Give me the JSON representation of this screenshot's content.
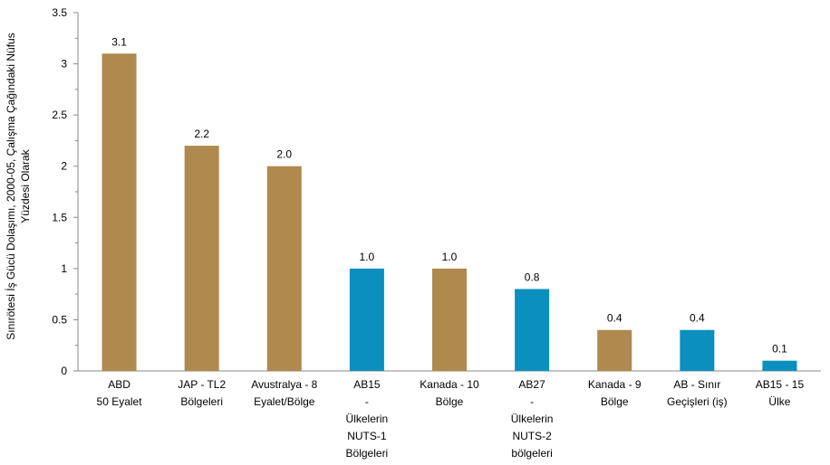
{
  "chart_data": {
    "type": "bar",
    "title": "",
    "ylabel_lines": [
      "Sınırötesi İş Gücü Dolaşımı, 2000-05, Çalışma Çağındaki Nüfus",
      "Yüzdesi Olarak"
    ],
    "xlabel": "",
    "ylim": [
      0,
      3.5
    ],
    "ytick_step": 0.5,
    "yticks": [
      "0",
      "0.5",
      "1",
      "1.5",
      "2",
      "2.5",
      "3",
      "3.5"
    ],
    "grid": false,
    "legend": "none",
    "categories": [
      [
        "ABD",
        "50 Eyalet"
      ],
      [
        "JAP - TL2",
        "Bölgeleri"
      ],
      [
        "Avustralya - 8",
        "Eyalet/Bölge"
      ],
      [
        "AB15",
        "-",
        "Ülkelerin",
        "NUTS-1",
        "Bölgeleri"
      ],
      [
        "Kanada - 10",
        "Bölge"
      ],
      [
        "AB27",
        "-",
        "Ülkelerin",
        "NUTS-2",
        "bölgeleri"
      ],
      [
        "Kanada - 9",
        "Bölge"
      ],
      [
        "AB - Sınır",
        "Geçişleri (iş)"
      ],
      [
        "AB15 - 15",
        "Ülke"
      ]
    ],
    "values": [
      3.1,
      2.2,
      2.0,
      1.0,
      1.0,
      0.8,
      0.4,
      0.4,
      0.1
    ],
    "value_labels": [
      "3.1",
      "2.2",
      "2.0",
      "1.0",
      "1.0",
      "0.8",
      "0.4",
      "0.4",
      "0.1"
    ],
    "bar_colors": [
      "#b0894f",
      "#b0894f",
      "#b0894f",
      "#0a8fbf",
      "#b0894f",
      "#0a8fbf",
      "#b0894f",
      "#0a8fbf",
      "#0a8fbf"
    ]
  }
}
